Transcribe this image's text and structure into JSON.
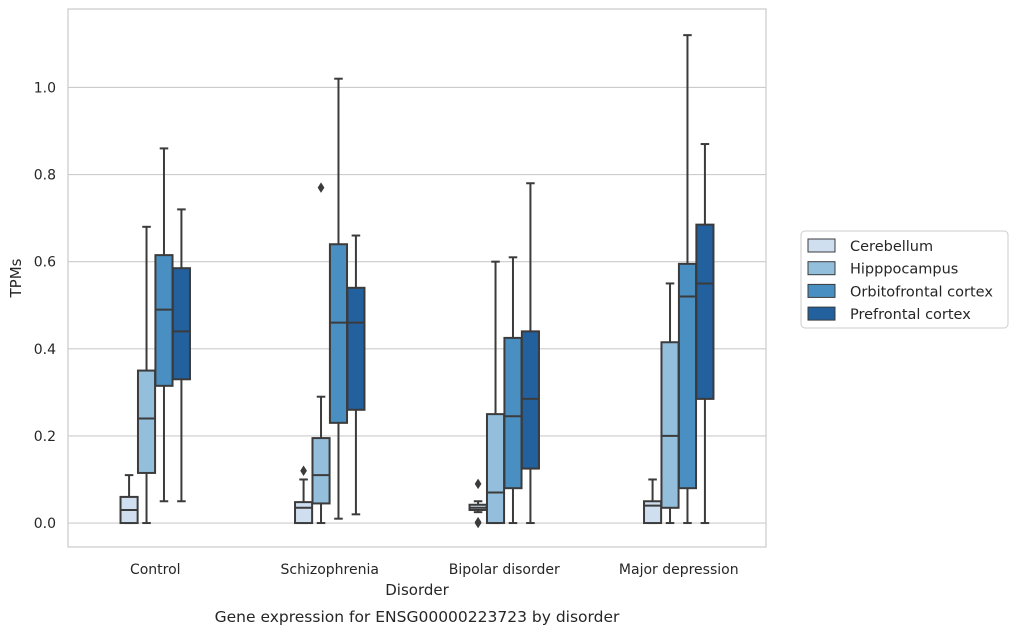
{
  "chart_data": {
    "type": "box",
    "caption": "Gene expression for ENSG00000223723 by disorder",
    "xlabel": "Disorder",
    "ylabel": "TPMs",
    "ylim": [
      -0.055,
      1.18
    ],
    "yticks": [
      0.0,
      0.2,
      0.4,
      0.6,
      0.8,
      1.0
    ],
    "ytick_labels": [
      "0.0",
      "0.2",
      "0.4",
      "0.6",
      "0.8",
      "1.0"
    ],
    "grid": "horizontal",
    "legend_position": "right",
    "categories": [
      "Control",
      "Schizophrenia",
      "Bipolar disorder",
      "Major depression"
    ],
    "series": [
      {
        "name": "Cerebellum",
        "color": "#d0dff0",
        "boxes": [
          {
            "whisker_low": 0.0,
            "q1": 0.0,
            "median": 0.03,
            "q3": 0.06,
            "whisker_high": 0.11,
            "outliers": []
          },
          {
            "whisker_low": 0.0,
            "q1": 0.0,
            "median": 0.035,
            "q3": 0.048,
            "whisker_high": 0.1,
            "outliers": [
              0.12
            ]
          },
          {
            "whisker_low": 0.025,
            "q1": 0.03,
            "median": 0.035,
            "q3": 0.042,
            "whisker_high": 0.05,
            "outliers": [
              0.09,
              0.0,
              0.002
            ]
          },
          {
            "whisker_low": 0.0,
            "q1": 0.0,
            "median": 0.04,
            "q3": 0.05,
            "whisker_high": 0.1,
            "outliers": []
          }
        ]
      },
      {
        "name": "Hipppocampus",
        "color": "#94bfdc",
        "boxes": [
          {
            "whisker_low": 0.0,
            "q1": 0.115,
            "median": 0.24,
            "q3": 0.35,
            "whisker_high": 0.68,
            "outliers": []
          },
          {
            "whisker_low": 0.0,
            "q1": 0.045,
            "median": 0.11,
            "q3": 0.195,
            "whisker_high": 0.29,
            "outliers": [
              0.77
            ]
          },
          {
            "whisker_low": 0.0,
            "q1": 0.0,
            "median": 0.07,
            "q3": 0.25,
            "whisker_high": 0.6,
            "outliers": []
          },
          {
            "whisker_low": 0.0,
            "q1": 0.035,
            "median": 0.2,
            "q3": 0.415,
            "whisker_high": 0.55,
            "outliers": []
          }
        ]
      },
      {
        "name": "Orbitofrontal cortex",
        "color": "#4a8fc2",
        "boxes": [
          {
            "whisker_low": 0.05,
            "q1": 0.315,
            "median": 0.49,
            "q3": 0.615,
            "whisker_high": 0.86,
            "outliers": []
          },
          {
            "whisker_low": 0.01,
            "q1": 0.23,
            "median": 0.46,
            "q3": 0.64,
            "whisker_high": 1.02,
            "outliers": []
          },
          {
            "whisker_low": 0.0,
            "q1": 0.08,
            "median": 0.245,
            "q3": 0.425,
            "whisker_high": 0.61,
            "outliers": []
          },
          {
            "whisker_low": 0.0,
            "q1": 0.08,
            "median": 0.52,
            "q3": 0.595,
            "whisker_high": 1.12,
            "outliers": []
          }
        ]
      },
      {
        "name": "Prefrontal cortex",
        "color": "#22609e",
        "boxes": [
          {
            "whisker_low": 0.05,
            "q1": 0.33,
            "median": 0.44,
            "q3": 0.585,
            "whisker_high": 0.72,
            "outliers": []
          },
          {
            "whisker_low": 0.02,
            "q1": 0.26,
            "median": 0.46,
            "q3": 0.54,
            "whisker_high": 0.66,
            "outliers": []
          },
          {
            "whisker_low": 0.0,
            "q1": 0.125,
            "median": 0.285,
            "q3": 0.44,
            "whisker_high": 0.78,
            "outliers": []
          },
          {
            "whisker_low": 0.0,
            "q1": 0.285,
            "median": 0.55,
            "q3": 0.685,
            "whisker_high": 0.87,
            "outliers": []
          }
        ]
      }
    ]
  }
}
